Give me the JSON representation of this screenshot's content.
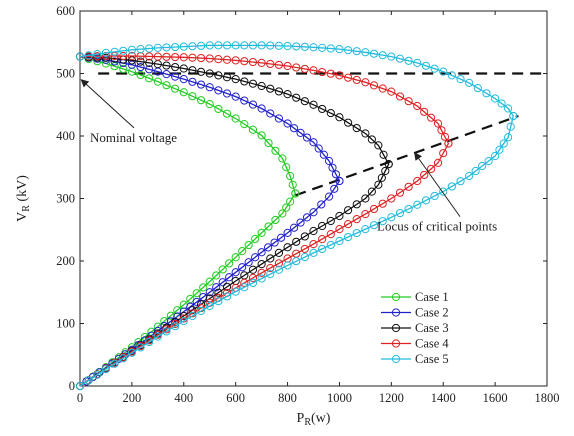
{
  "chart_data": {
    "type": "line",
    "xlabel": "P_R(w)",
    "ylabel": "V_R (kV)",
    "xlim": [
      0,
      1800
    ],
    "ylim": [
      0,
      600
    ],
    "x_ticks": [
      "0",
      "200",
      "400",
      "600",
      "800",
      "1000",
      "1200",
      "1400",
      "1600",
      "1800"
    ],
    "y_ticks": [
      "0",
      "100",
      "200",
      "300",
      "400",
      "500",
      "600"
    ],
    "grid": false,
    "legend_position": "bottom-right",
    "series": [
      {
        "name": "Case 1",
        "color": "#22cc22",
        "upper": [
          [
            0,
            527
          ],
          [
            100,
            516
          ],
          [
            200,
            503
          ],
          [
            300,
            487
          ],
          [
            400,
            470
          ],
          [
            500,
            451
          ],
          [
            600,
            428
          ],
          [
            700,
            401
          ],
          [
            780,
            364
          ],
          [
            810,
            336
          ],
          [
            830,
            308
          ]
        ],
        "lower": [
          [
            0,
            0
          ],
          [
            100,
            30
          ],
          [
            200,
            62
          ],
          [
            300,
            95
          ],
          [
            400,
            130
          ],
          [
            500,
            167
          ],
          [
            600,
            206
          ],
          [
            700,
            245
          ],
          [
            780,
            276
          ],
          [
            810,
            295
          ],
          [
            830,
            308
          ]
        ]
      },
      {
        "name": "Case 2",
        "color": "#2222cc",
        "upper": [
          [
            0,
            527
          ],
          [
            100,
            522
          ],
          [
            200,
            514
          ],
          [
            300,
            503
          ],
          [
            400,
            491
          ],
          [
            500,
            478
          ],
          [
            600,
            463
          ],
          [
            700,
            444
          ],
          [
            800,
            420
          ],
          [
            900,
            390
          ],
          [
            960,
            360
          ],
          [
            1000,
            328
          ]
        ],
        "lower": [
          [
            0,
            0
          ],
          [
            100,
            29
          ],
          [
            200,
            58
          ],
          [
            300,
            88
          ],
          [
            400,
            119
          ],
          [
            500,
            150
          ],
          [
            600,
            182
          ],
          [
            700,
            214
          ],
          [
            800,
            245
          ],
          [
            900,
            278
          ],
          [
            960,
            303
          ],
          [
            1000,
            328
          ]
        ]
      },
      {
        "name": "Case 3",
        "color": "#111111",
        "upper": [
          [
            0,
            527
          ],
          [
            100,
            525
          ],
          [
            200,
            521
          ],
          [
            300,
            515
          ],
          [
            400,
            508
          ],
          [
            500,
            500
          ],
          [
            600,
            491
          ],
          [
            700,
            480
          ],
          [
            800,
            467
          ],
          [
            900,
            450
          ],
          [
            1000,
            430
          ],
          [
            1100,
            404
          ],
          [
            1150,
            385
          ],
          [
            1190,
            355
          ]
        ],
        "lower": [
          [
            0,
            0
          ],
          [
            100,
            28
          ],
          [
            200,
            56
          ],
          [
            300,
            84
          ],
          [
            400,
            112
          ],
          [
            500,
            140
          ],
          [
            600,
            168
          ],
          [
            700,
            195
          ],
          [
            800,
            222
          ],
          [
            900,
            248
          ],
          [
            1000,
            272
          ],
          [
            1100,
            300
          ],
          [
            1150,
            322
          ],
          [
            1190,
            355
          ]
        ]
      },
      {
        "name": "Case 4",
        "color": "#dd2222",
        "upper": [
          [
            0,
            527
          ],
          [
            100,
            528
          ],
          [
            200,
            528
          ],
          [
            300,
            527
          ],
          [
            400,
            526
          ],
          [
            500,
            524
          ],
          [
            600,
            521
          ],
          [
            700,
            517
          ],
          [
            800,
            512
          ],
          [
            900,
            505
          ],
          [
            1000,
            497
          ],
          [
            1100,
            486
          ],
          [
            1200,
            471
          ],
          [
            1300,
            448
          ],
          [
            1380,
            420
          ],
          [
            1420,
            388
          ]
        ],
        "lower": [
          [
            0,
            0
          ],
          [
            100,
            28
          ],
          [
            200,
            55
          ],
          [
            300,
            82
          ],
          [
            400,
            108
          ],
          [
            500,
            133
          ],
          [
            600,
            157
          ],
          [
            700,
            181
          ],
          [
            800,
            204
          ],
          [
            900,
            227
          ],
          [
            1000,
            251
          ],
          [
            1100,
            275
          ],
          [
            1200,
            300
          ],
          [
            1300,
            328
          ],
          [
            1380,
            357
          ],
          [
            1420,
            388
          ]
        ]
      },
      {
        "name": "Case 5",
        "color": "#22bbdd",
        "upper": [
          [
            0,
            527
          ],
          [
            100,
            533
          ],
          [
            200,
            538
          ],
          [
            300,
            541
          ],
          [
            400,
            543
          ],
          [
            500,
            545
          ],
          [
            600,
            545
          ],
          [
            700,
            545
          ],
          [
            800,
            544
          ],
          [
            900,
            542
          ],
          [
            1000,
            539
          ],
          [
            1100,
            534
          ],
          [
            1200,
            527
          ],
          [
            1300,
            517
          ],
          [
            1400,
            503
          ],
          [
            1500,
            485
          ],
          [
            1600,
            460
          ],
          [
            1650,
            444
          ],
          [
            1670,
            432
          ]
        ],
        "lower": [
          [
            0,
            0
          ],
          [
            100,
            27
          ],
          [
            200,
            53
          ],
          [
            300,
            79
          ],
          [
            400,
            104
          ],
          [
            500,
            128
          ],
          [
            600,
            151
          ],
          [
            700,
            172
          ],
          [
            800,
            193
          ],
          [
            900,
            213
          ],
          [
            1000,
            232
          ],
          [
            1100,
            251
          ],
          [
            1200,
            270
          ],
          [
            1300,
            290
          ],
          [
            1400,
            311
          ],
          [
            1500,
            336
          ],
          [
            1600,
            368
          ],
          [
            1650,
            398
          ],
          [
            1670,
            432
          ]
        ]
      }
    ],
    "reference_lines": [
      {
        "name": "nominal",
        "points": [
          [
            70,
            500
          ],
          [
            1800,
            500
          ]
        ]
      },
      {
        "name": "locus",
        "points": [
          [
            830,
            305
          ],
          [
            1690,
            432
          ]
        ]
      }
    ],
    "annotations": [
      {
        "id": "nominal",
        "text": "Nominal voltage",
        "anchor": [
          320,
          397
        ],
        "target": [
          5,
          490
        ]
      },
      {
        "id": "locus",
        "text": "Locus of critical points",
        "anchor": [
          1420,
          255
        ],
        "target": [
          1290,
          373
        ]
      }
    ]
  }
}
